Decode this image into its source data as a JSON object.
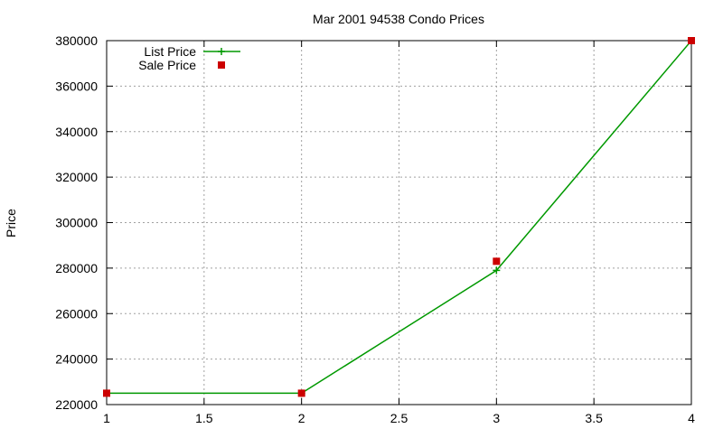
{
  "chart_data": {
    "type": "line",
    "title": "Mar 2001 94538 Condo Prices",
    "xlabel": "",
    "ylabel": "Price",
    "xlim": [
      1,
      4
    ],
    "ylim": [
      220000,
      380000
    ],
    "x_ticks": [
      1,
      1.5,
      2,
      2.5,
      3,
      3.5,
      4
    ],
    "x_tick_labels": [
      "1",
      "1.5",
      "2",
      "2.5",
      "3",
      "3.5",
      "4"
    ],
    "y_ticks": [
      220000,
      240000,
      260000,
      280000,
      300000,
      320000,
      340000,
      360000,
      380000
    ],
    "y_tick_labels": [
      "220000",
      "240000",
      "260000",
      "280000",
      "300000",
      "320000",
      "340000",
      "360000",
      "380000"
    ],
    "grid": true,
    "legend_position": "top-left",
    "series": [
      {
        "name": "List Price",
        "style": "linespoints",
        "marker": "plus",
        "color": "#009900",
        "x": [
          1,
          2,
          3,
          4
        ],
        "y": [
          225000,
          225000,
          279000,
          380000
        ]
      },
      {
        "name": "Sale Price",
        "style": "points",
        "marker": "square",
        "color": "#cc0000",
        "x": [
          1,
          2,
          3,
          4
        ],
        "y": [
          225000,
          225000,
          283000,
          380000
        ]
      }
    ]
  }
}
